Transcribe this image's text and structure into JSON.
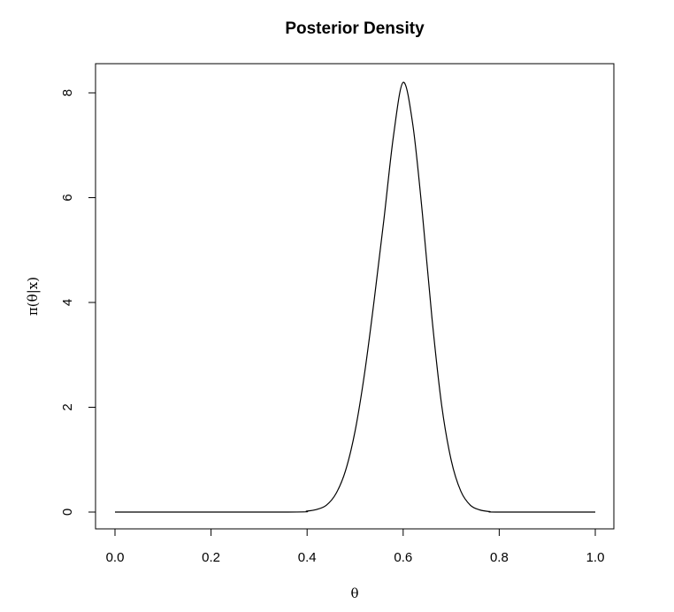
{
  "chart_data": {
    "type": "line",
    "title": "Posterior Density",
    "xlabel": "θ",
    "ylabel": "π(θ|x)",
    "xlim": [
      0.0,
      1.0
    ],
    "ylim": [
      0,
      8.6
    ],
    "x_ticks": [
      "0.0",
      "0.2",
      "0.4",
      "0.6",
      "0.8",
      "1.0"
    ],
    "y_ticks": [
      "0",
      "2",
      "4",
      "6",
      "8"
    ],
    "grid": false,
    "legend": "none",
    "series": [
      {
        "x": [
          0.0,
          0.36,
          0.4,
          0.42,
          0.44,
          0.46,
          0.48,
          0.5,
          0.52,
          0.54,
          0.56,
          0.58,
          0.6,
          0.62,
          0.64,
          0.66,
          0.68,
          0.7,
          0.72,
          0.74,
          0.76,
          0.78,
          0.8,
          1.0
        ],
        "y": [
          0.0,
          0.0,
          0.02,
          0.05,
          0.13,
          0.35,
          0.79,
          1.55,
          2.67,
          4.07,
          5.59,
          7.19,
          8.2,
          7.4,
          5.7,
          3.7,
          2.05,
          0.99,
          0.4,
          0.13,
          0.04,
          0.01,
          0.0,
          0.0
        ]
      }
    ],
    "line_color": "#000000"
  }
}
